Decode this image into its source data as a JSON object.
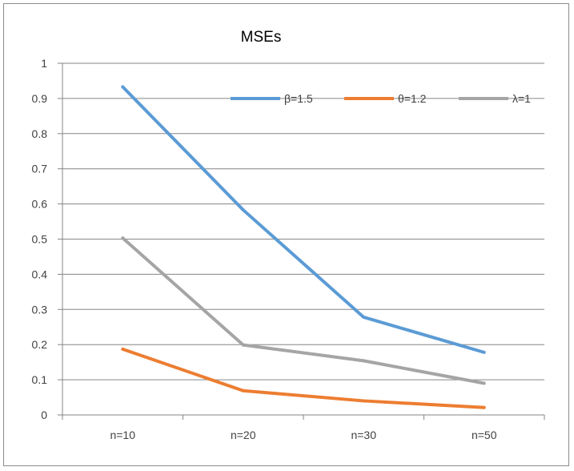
{
  "chart_data": {
    "type": "line",
    "title": "MSEs",
    "categories": [
      "n=10",
      "n=20",
      "n=30",
      "n=50"
    ],
    "ylim": [
      0,
      1
    ],
    "yticks": [
      "0",
      "0.1",
      "0.2",
      "0.3",
      "0.4",
      "0.5",
      "0.6",
      "0.7",
      "0.8",
      "0.9",
      "1"
    ],
    "grid": true,
    "legend_position": "top-right",
    "series": [
      {
        "name": "β=1.5",
        "color": "#5b9bd5",
        "values": [
          0.933,
          0.583,
          0.278,
          0.178
        ]
      },
      {
        "name": "θ=1.2",
        "color": "#ed7d31",
        "values": [
          0.187,
          0.069,
          0.04,
          0.021
        ]
      },
      {
        "name": "λ=1",
        "color": "#a5a5a5",
        "values": [
          0.503,
          0.199,
          0.154,
          0.09
        ]
      }
    ]
  }
}
